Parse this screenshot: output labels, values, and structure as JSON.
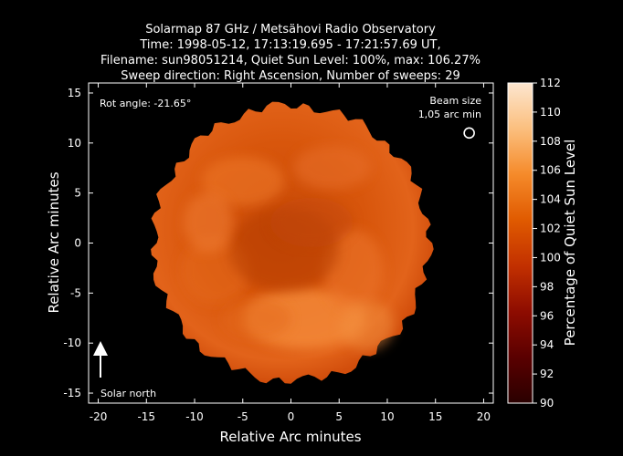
{
  "chart_data": {
    "type": "heatmap",
    "title_lines": [
      "Solarmap 87 GHz / Metsähovi Radio Observatory",
      "Time: 1998-05-12, 17:13:19.695 - 17:21:57.69 UT,",
      "Filename: sun98051214, Quiet Sun Level: 100%, max: 106.27%",
      "Sweep direction: Right Ascension, Number of sweeps: 29"
    ],
    "xlabel": "Relative Arc minutes",
    "ylabel": "Relative Arc minutes",
    "xlim": [
      -21,
      21
    ],
    "ylim": [
      -16,
      16
    ],
    "xticks": [
      -20,
      -15,
      -10,
      -5,
      0,
      5,
      10,
      15,
      20
    ],
    "yticks": [
      -15,
      -10,
      -5,
      0,
      5,
      10,
      15
    ],
    "colorbar": {
      "label": "Percentage of Quiet Sun Level",
      "range": [
        90,
        112
      ],
      "ticks": [
        90,
        92,
        94,
        96,
        98,
        100,
        102,
        104,
        106,
        108,
        110,
        112
      ],
      "colors": [
        "#2a0000",
        "#5a0000",
        "#8e0c00",
        "#c23000",
        "#e05a00",
        "#f58a2a",
        "#fbbf7e",
        "#fde6cf"
      ]
    },
    "disk": {
      "center": [
        0,
        0
      ],
      "radius_arcmin": 14.3
    },
    "annotations": {
      "rot_angle": "Rot angle: -21.65°",
      "beam_line1": "Beam size",
      "beam_line2": "1,05 arc min",
      "beam_position": [
        18.5,
        11
      ],
      "solar_north": "Solar north"
    }
  }
}
